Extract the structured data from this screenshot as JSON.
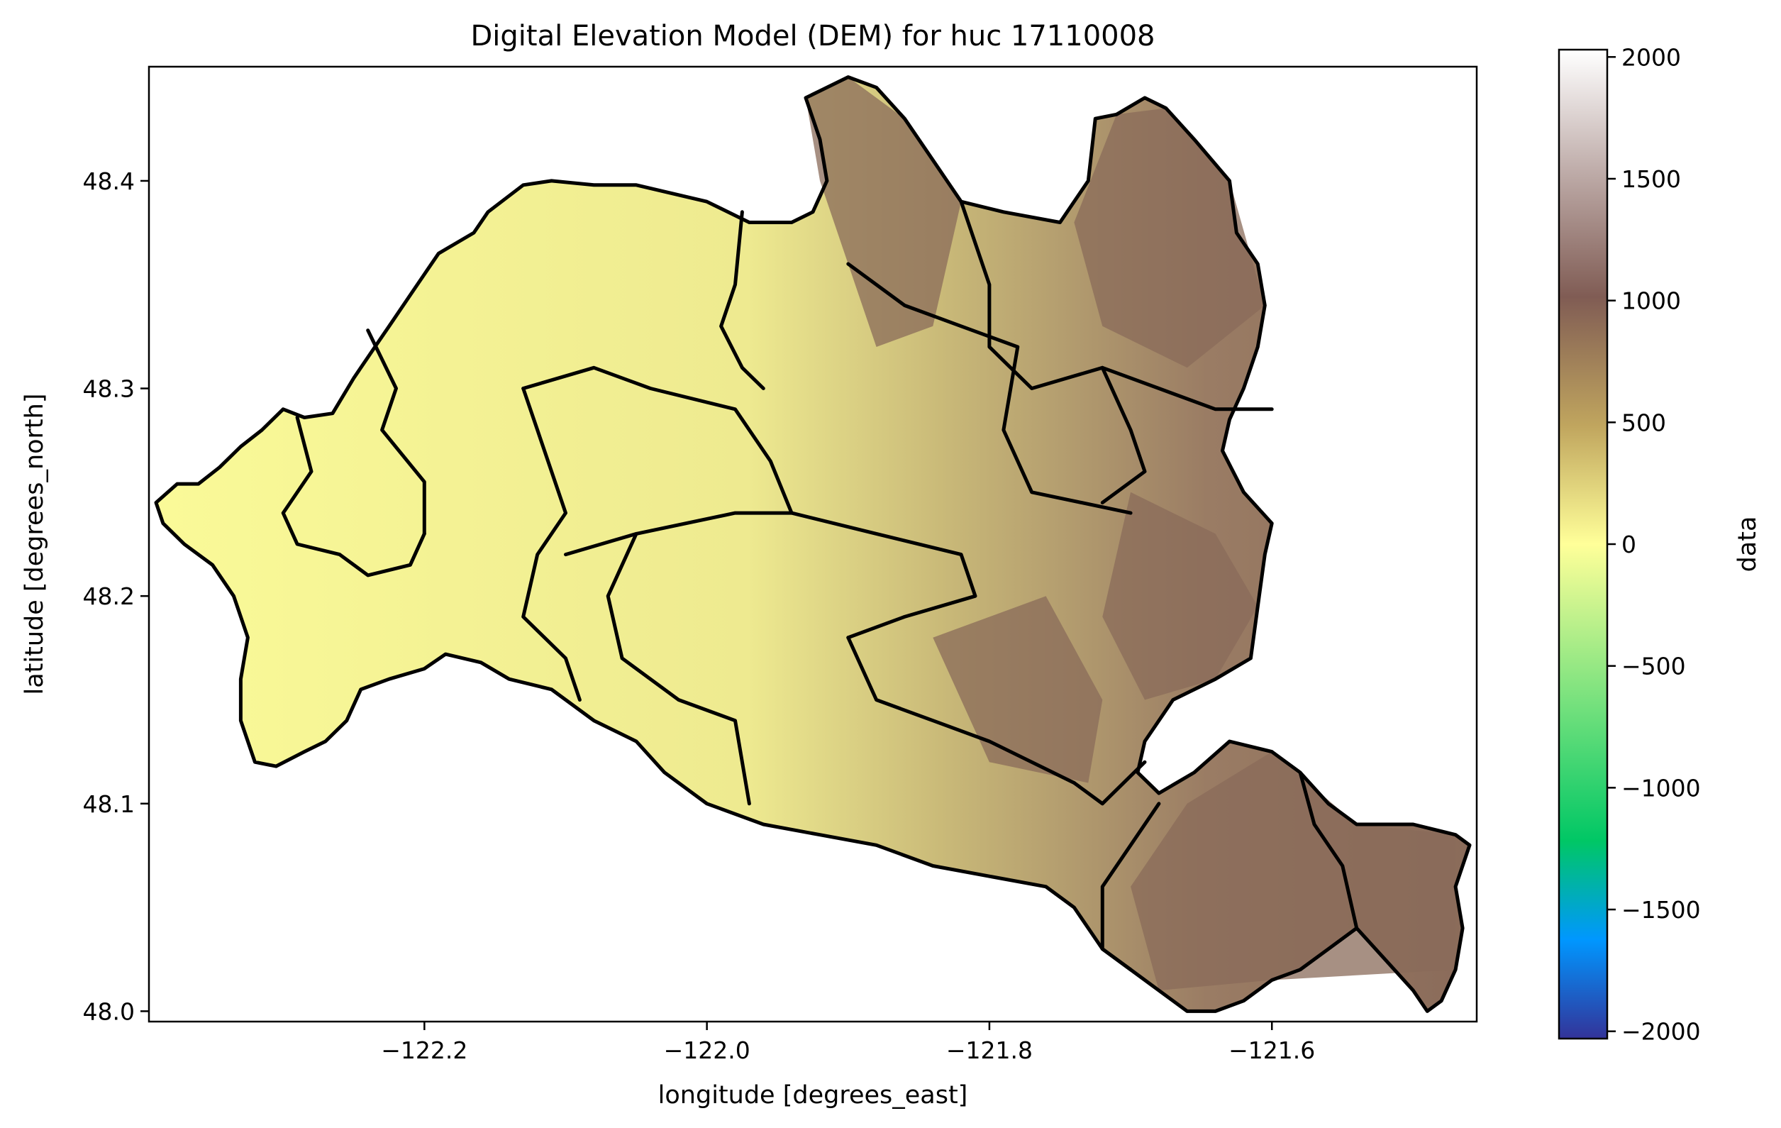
{
  "chart_data": {
    "type": "heatmap",
    "title": "Digital Elevation Model (DEM) for huc 17110008",
    "xlabel": "longitude [degrees_east]",
    "ylabel": "latitude [degrees_north]",
    "xlim": [
      -122.395,
      -121.455
    ],
    "ylim": [
      47.995,
      48.455
    ],
    "xticks": [
      -122.2,
      -122.0,
      -121.8,
      -121.6
    ],
    "xtick_labels": [
      "−122.2",
      "−122.0",
      "−121.8",
      "−121.6"
    ],
    "yticks": [
      48.0,
      48.1,
      48.2,
      48.3,
      48.4
    ],
    "ytick_labels": [
      "48.0",
      "48.1",
      "48.2",
      "48.3",
      "48.4"
    ],
    "colorbar": {
      "label": "data",
      "colormap": "terrain",
      "range": [
        -2030,
        2030
      ],
      "ticks": [
        2000,
        1500,
        1000,
        500,
        0,
        -500,
        -1000,
        -1500,
        -2000
      ],
      "tick_labels": [
        "2000",
        "1500",
        "1000",
        "500",
        "0",
        "−500",
        "−1000",
        "−1500",
        "−2000"
      ],
      "colors": [
        "#333399",
        "#0097ff",
        "#00c765",
        "#7fe37f",
        "#ffff99",
        "#c0a55e",
        "#805c54",
        "#c0aeab",
        "#ffffff"
      ]
    },
    "grid": false,
    "legend": "none",
    "region_colors": {
      "lowland": "#fafa98",
      "foothill": "#d2c67a",
      "mountain": "#8a6b5a",
      "outline": "#000000"
    }
  }
}
